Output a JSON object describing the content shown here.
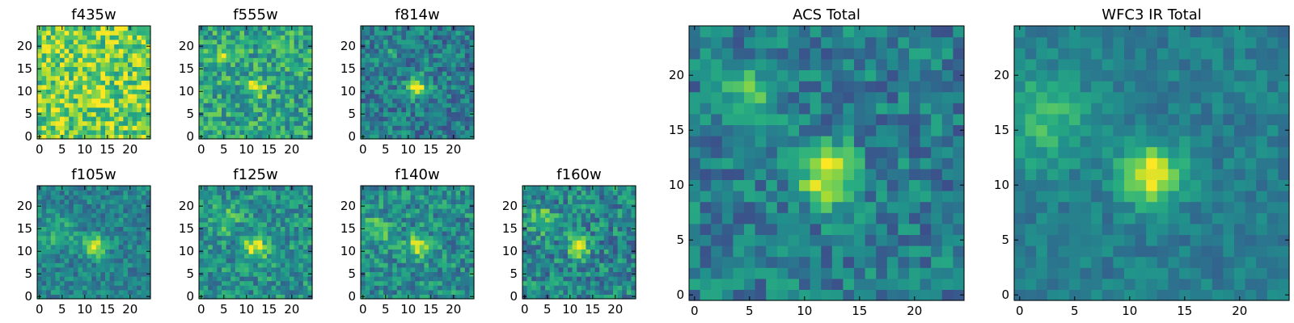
{
  "figure": {
    "background": "#ffffff"
  },
  "colormap": {
    "name": "viridis",
    "stops": [
      "#440154",
      "#472d7b",
      "#3b528b",
      "#2c728e",
      "#21918c",
      "#28ae80",
      "#5ec962",
      "#addc30",
      "#fde725"
    ]
  },
  "chart_data": [
    {
      "type": "heatmap",
      "title": "f435w",
      "xlim": [
        0,
        24
      ],
      "ylim": [
        0,
        24
      ],
      "xticks": [
        "0",
        "5",
        "10",
        "15",
        "20"
      ],
      "yticks": [
        "0",
        "5",
        "10",
        "15",
        "20"
      ],
      "grid": false,
      "background_level": 0.78,
      "noise": 0.26,
      "sources": [
        {
          "x": 12,
          "y": 11,
          "amplitude": 0.12,
          "sigma": 2.0
        }
      ]
    },
    {
      "type": "heatmap",
      "title": "f555w",
      "xlim": [
        0,
        24
      ],
      "ylim": [
        0,
        24
      ],
      "xticks": [
        "0",
        "5",
        "10",
        "15",
        "20"
      ],
      "yticks": [
        "0",
        "5",
        "10",
        "15",
        "20"
      ],
      "grid": false,
      "background_level": 0.58,
      "noise": 0.22,
      "sources": [
        {
          "x": 12,
          "y": 11,
          "amplitude": 0.42,
          "sigma": 1.4
        },
        {
          "x": 5,
          "y": 18,
          "amplitude": 0.22,
          "sigma": 1.3
        }
      ]
    },
    {
      "type": "heatmap",
      "title": "f814w",
      "xlim": [
        0,
        24
      ],
      "ylim": [
        0,
        24
      ],
      "xticks": [
        "0",
        "5",
        "10",
        "15",
        "20"
      ],
      "yticks": [
        "0",
        "5",
        "10",
        "15",
        "20"
      ],
      "grid": false,
      "background_level": 0.42,
      "noise": 0.2,
      "sources": [
        {
          "x": 12,
          "y": 11,
          "amplitude": 0.55,
          "sigma": 1.5
        },
        {
          "x": 5,
          "y": 18,
          "amplitude": 0.15,
          "sigma": 1.5
        }
      ]
    },
    {
      "type": "heatmap",
      "title": "f105w",
      "xlim": [
        0,
        24
      ],
      "ylim": [
        0,
        24
      ],
      "xticks": [
        "0",
        "5",
        "10",
        "15",
        "20"
      ],
      "yticks": [
        "0",
        "5",
        "10",
        "15",
        "20"
      ],
      "grid": false,
      "background_level": 0.45,
      "noise": 0.16,
      "sources": [
        {
          "x": 12,
          "y": 11,
          "amplitude": 0.5,
          "sigma": 1.6
        },
        {
          "x": 4,
          "y": 14,
          "amplitude": 0.2,
          "sigma": 2.5
        }
      ]
    },
    {
      "type": "heatmap",
      "title": "f125w",
      "xlim": [
        0,
        24
      ],
      "ylim": [
        0,
        24
      ],
      "xticks": [
        "0",
        "5",
        "10",
        "15",
        "20"
      ],
      "yticks": [
        "0",
        "5",
        "10",
        "15",
        "20"
      ],
      "grid": false,
      "background_level": 0.5,
      "noise": 0.2,
      "sources": [
        {
          "x": 12,
          "y": 11,
          "amplitude": 0.45,
          "sigma": 1.8
        },
        {
          "x": 5,
          "y": 17,
          "amplitude": 0.2,
          "sigma": 2.2
        }
      ]
    },
    {
      "type": "heatmap",
      "title": "f140w",
      "xlim": [
        0,
        24
      ],
      "ylim": [
        0,
        24
      ],
      "xticks": [
        "0",
        "5",
        "10",
        "15",
        "20"
      ],
      "yticks": [
        "0",
        "5",
        "10",
        "15",
        "20"
      ],
      "grid": false,
      "background_level": 0.48,
      "noise": 0.2,
      "sources": [
        {
          "x": 12,
          "y": 11,
          "amplitude": 0.45,
          "sigma": 1.7
        },
        {
          "x": 3,
          "y": 15,
          "amplitude": 0.25,
          "sigma": 2.2
        }
      ]
    },
    {
      "type": "heatmap",
      "title": "f160w",
      "xlim": [
        0,
        24
      ],
      "ylim": [
        0,
        24
      ],
      "xticks": [
        "0",
        "5",
        "10",
        "15",
        "20"
      ],
      "yticks": [
        "0",
        "5",
        "10",
        "15",
        "20"
      ],
      "grid": false,
      "background_level": 0.46,
      "noise": 0.22,
      "sources": [
        {
          "x": 12,
          "y": 11,
          "amplitude": 0.45,
          "sigma": 1.6
        },
        {
          "x": 4,
          "y": 17,
          "amplitude": 0.3,
          "sigma": 2.0
        }
      ]
    },
    {
      "type": "heatmap",
      "title": "ACS Total",
      "xlim": [
        0,
        24
      ],
      "ylim": [
        0,
        24
      ],
      "xticks": [
        "0",
        "5",
        "10",
        "15",
        "20"
      ],
      "yticks": [
        "0",
        "5",
        "10",
        "15",
        "20"
      ],
      "grid": false,
      "background_level": 0.42,
      "noise": 0.18,
      "sources": [
        {
          "x": 12,
          "y": 11,
          "amplitude": 0.6,
          "sigma": 1.8
        },
        {
          "x": 5,
          "y": 18,
          "amplitude": 0.3,
          "sigma": 1.6
        }
      ]
    },
    {
      "type": "heatmap",
      "title": "WFC3 IR Total",
      "xlim": [
        0,
        24
      ],
      "ylim": [
        0,
        24
      ],
      "xticks": [
        "0",
        "5",
        "10",
        "15",
        "20"
      ],
      "yticks": [
        "0",
        "5",
        "10",
        "15",
        "20"
      ],
      "grid": false,
      "background_level": 0.42,
      "noise": 0.1,
      "sources": [
        {
          "x": 12,
          "y": 11,
          "amplitude": 0.58,
          "sigma": 1.9
        },
        {
          "x": 2,
          "y": 16,
          "amplitude": 0.25,
          "sigma": 3.0
        }
      ]
    }
  ]
}
